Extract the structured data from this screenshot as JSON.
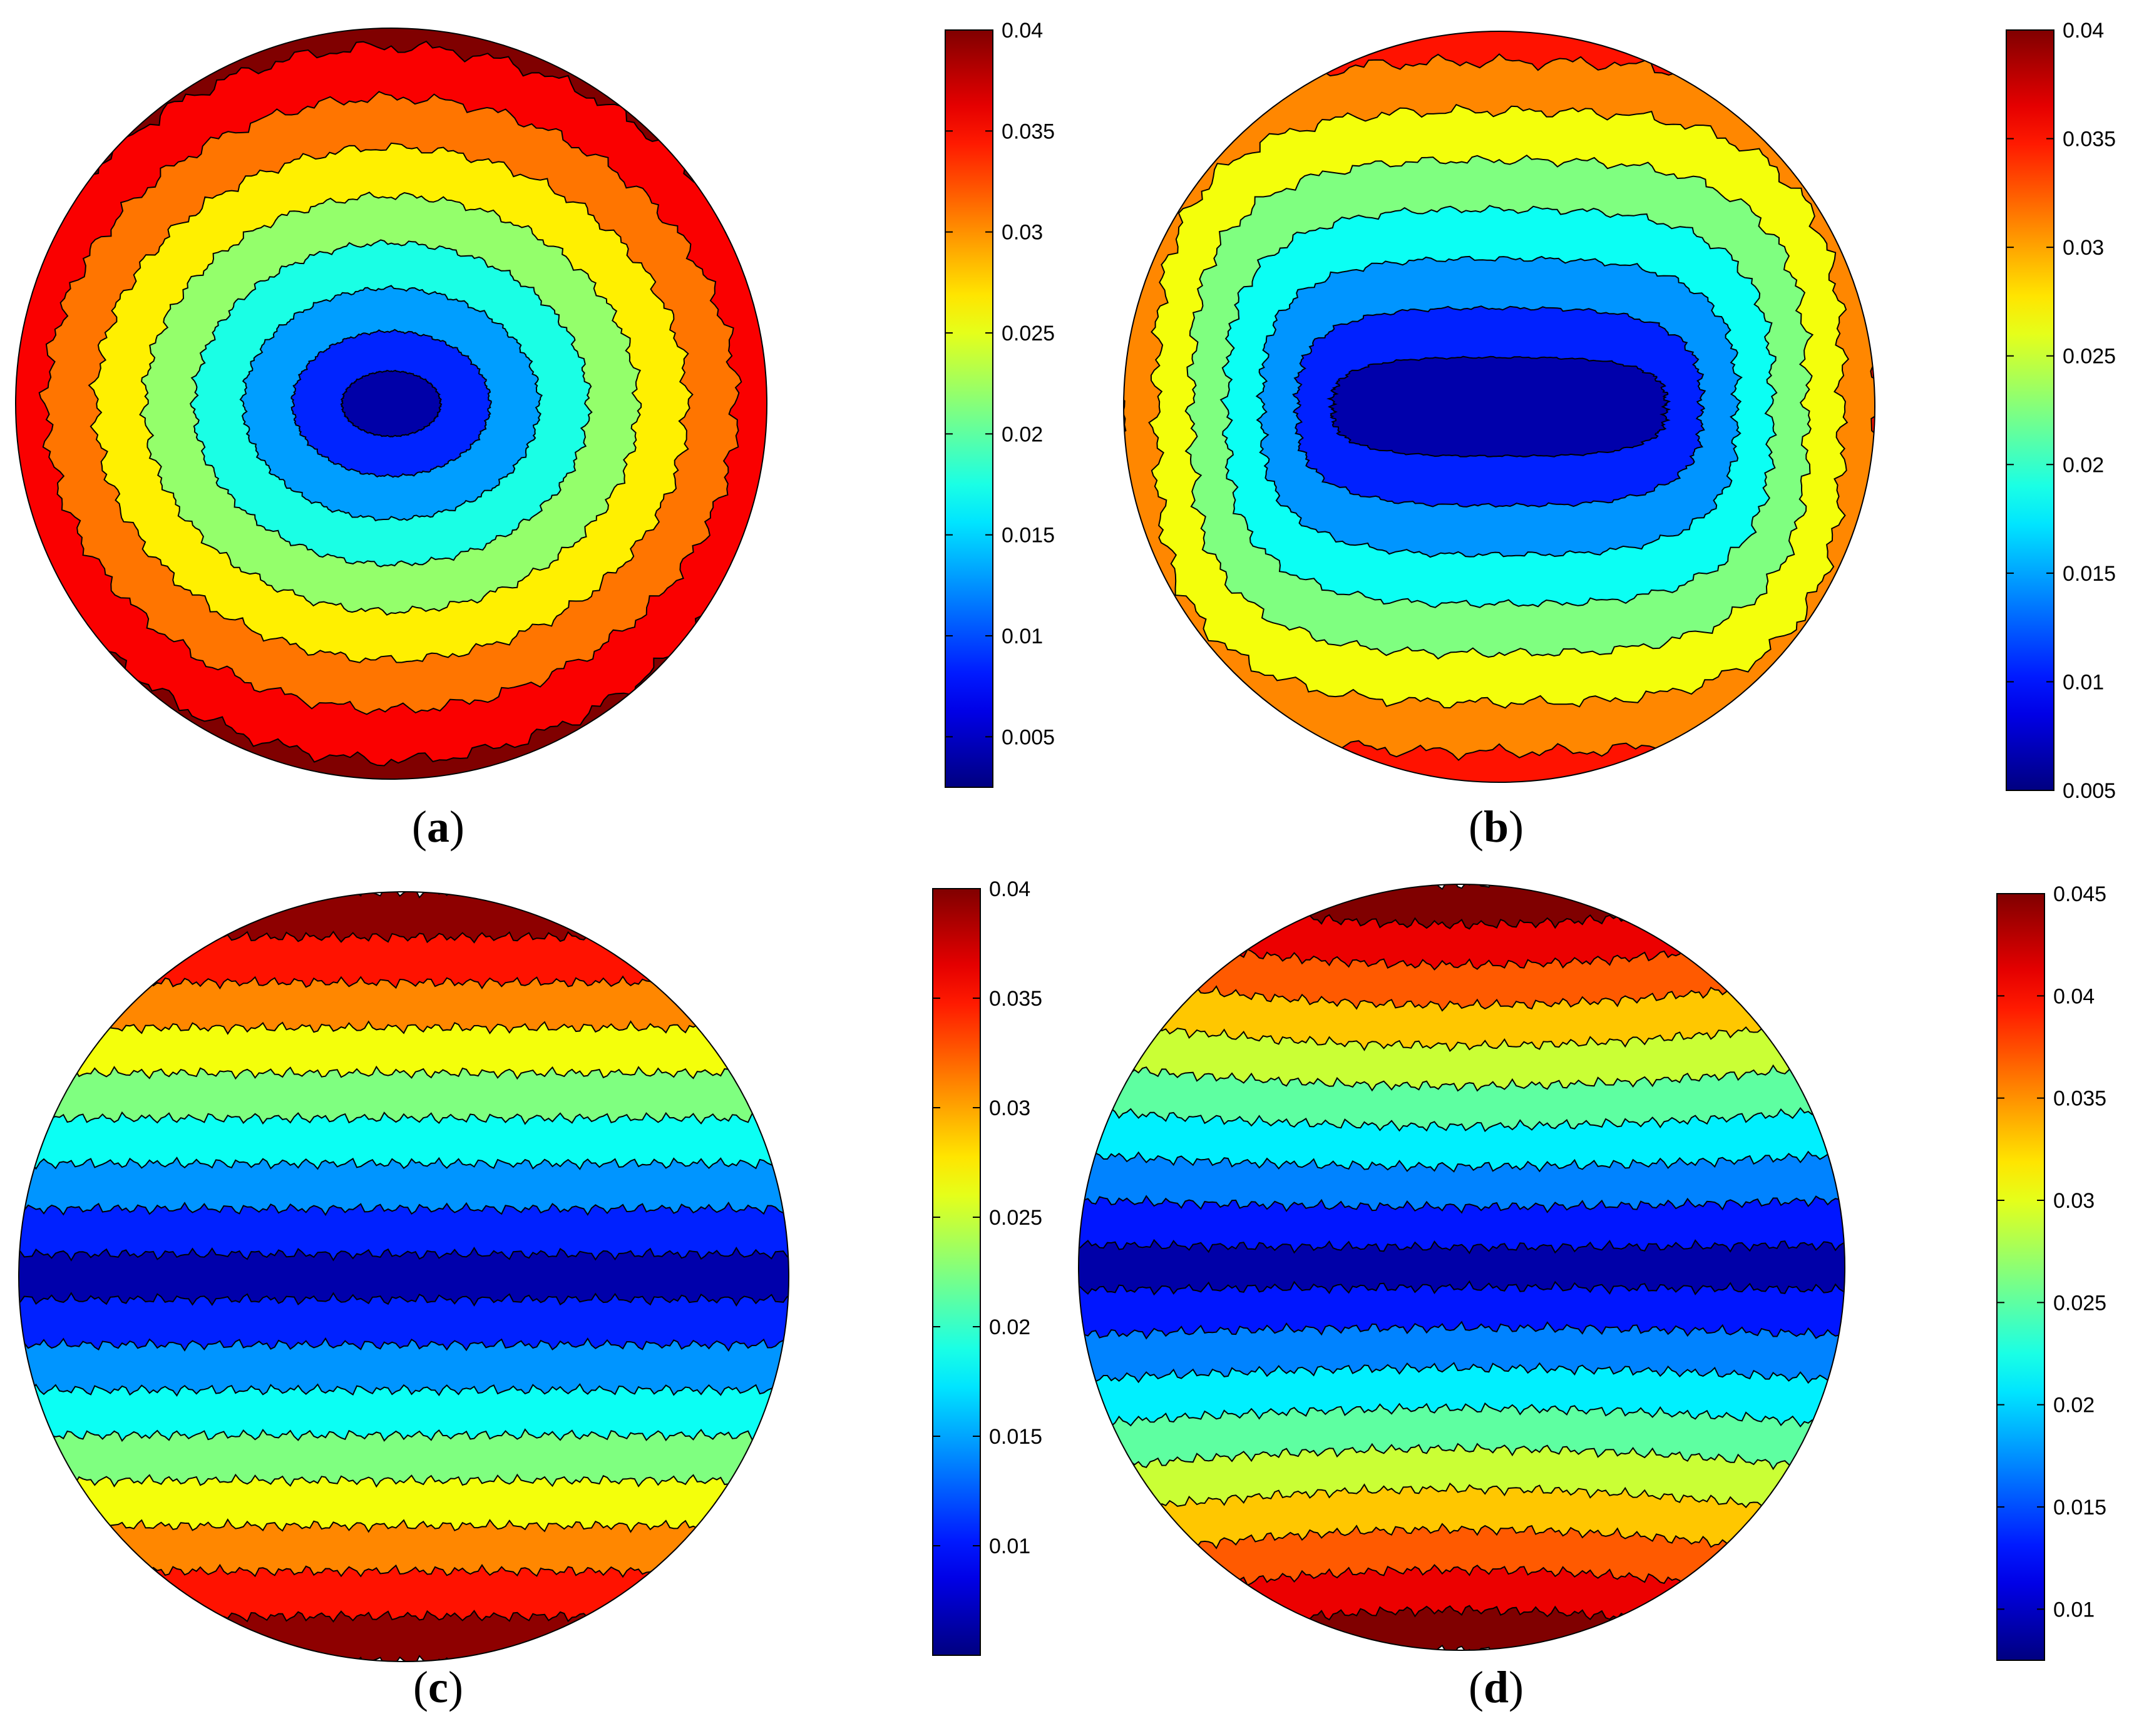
{
  "figure": {
    "panels": [
      {
        "id": "a",
        "label_open": "(",
        "letter": "a",
        "label_close": ")"
      },
      {
        "id": "b",
        "label_open": "(",
        "letter": "b",
        "label_close": ")"
      },
      {
        "id": "c",
        "label_open": "(",
        "letter": "c",
        "label_close": ")"
      },
      {
        "id": "d",
        "label_open": "(",
        "letter": "d",
        "label_close": ")"
      }
    ]
  },
  "colormap": "jet",
  "chart_data": [
    {
      "type": "heatmap",
      "panel": "a",
      "shape": "circular disk contour map",
      "pattern": "concentric elliptical rings, minimum at centre",
      "title": "",
      "xlabel": "",
      "ylabel": "",
      "colorbar": {
        "min": 0.0025,
        "max": 0.04,
        "ticks": [
          "0.005",
          "0.01",
          "0.015",
          "0.02",
          "0.025",
          "0.03",
          "0.035",
          "0.04"
        ]
      },
      "levels": [
        0.004,
        0.0085,
        0.013,
        0.0175,
        0.022,
        0.0265,
        0.031,
        0.0355,
        0.04
      ]
    },
    {
      "type": "heatmap",
      "panel": "b",
      "shape": "circular disk contour map",
      "pattern": "horizontally elongated bands, minimum at centre",
      "title": "",
      "xlabel": "",
      "ylabel": "",
      "colorbar": {
        "min": 0.005,
        "max": 0.04,
        "ticks": [
          "0.005",
          "0.01",
          "0.015",
          "0.02",
          "0.025",
          "0.03",
          "0.035",
          "0.04"
        ]
      },
      "levels": [
        0.0065,
        0.0105,
        0.0145,
        0.0185,
        0.0225,
        0.0265,
        0.031,
        0.035,
        0.0395
      ]
    },
    {
      "type": "heatmap",
      "panel": "c",
      "shape": "circular disk contour map",
      "pattern": "horizontal stripes, minimum along horizontal centreline",
      "title": "",
      "xlabel": "",
      "ylabel": "",
      "colorbar": {
        "min": 0.005,
        "max": 0.04,
        "ticks": [
          "0.01",
          "0.015",
          "0.02",
          "0.025",
          "0.03",
          "0.035",
          "0.04"
        ]
      },
      "levels": [
        0.0065,
        0.0105,
        0.0145,
        0.0185,
        0.0225,
        0.0265,
        0.031,
        0.035,
        0.0395
      ]
    },
    {
      "type": "heatmap",
      "panel": "d",
      "shape": "circular disk contour map",
      "pattern": "horizontal stripes, minimum along horizontal centreline",
      "title": "",
      "xlabel": "",
      "ylabel": "",
      "colorbar": {
        "min": 0.0075,
        "max": 0.045,
        "ticks": [
          "0.01",
          "0.015",
          "0.02",
          "0.025",
          "0.03",
          "0.035",
          "0.04",
          "0.045"
        ]
      },
      "levels": [
        0.009,
        0.013,
        0.017,
        0.021,
        0.025,
        0.029,
        0.033,
        0.037,
        0.041,
        0.045
      ]
    }
  ]
}
